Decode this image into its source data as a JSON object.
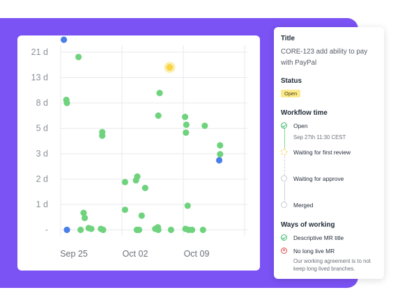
{
  "chart_data": {
    "type": "scatter",
    "y_ticks": [
      "21 d",
      "13 d",
      "8 d",
      "5 d",
      "3 d",
      "2 d",
      "1 d",
      "-"
    ],
    "x_ticks": [
      "Sep 25",
      "Oct 02",
      "Oct 09"
    ],
    "x_domain": [
      "Sep 25",
      "Oct 15"
    ],
    "y_scale": "ordinal tick bands",
    "grid": true,
    "colors": {
      "green": "#6fd37e",
      "blue": "#4a7fe8",
      "highlight": "#f8d544",
      "halo": "#fbeeb0"
    },
    "points": [
      {
        "x": 0.37,
        "y": 7.49,
        "c": "blue"
      },
      {
        "x": 0.65,
        "y": 5.12,
        "c": "green"
      },
      {
        "x": 0.72,
        "y": 5.0,
        "c": "green"
      },
      {
        "x": 0.72,
        "y": 0.0,
        "c": "blue"
      },
      {
        "x": 2.04,
        "y": 6.81,
        "c": "green"
      },
      {
        "x": 2.28,
        "y": 0.0,
        "c": "green"
      },
      {
        "x": 2.62,
        "y": 0.67,
        "c": "green"
      },
      {
        "x": 2.75,
        "y": 0.47,
        "c": "green"
      },
      {
        "x": 3.2,
        "y": 0.07,
        "c": "green"
      },
      {
        "x": 3.5,
        "y": 0.04,
        "c": "green"
      },
      {
        "x": 4.6,
        "y": 0.04,
        "c": "green"
      },
      {
        "x": 4.85,
        "y": 0.0,
        "c": "green"
      },
      {
        "x": 4.75,
        "y": 3.85,
        "c": "green"
      },
      {
        "x": 4.75,
        "y": 3.71,
        "c": "green"
      },
      {
        "x": 7.35,
        "y": 0.79,
        "c": "green"
      },
      {
        "x": 7.35,
        "y": 1.88,
        "c": "green"
      },
      {
        "x": 8.6,
        "y": 1.95,
        "c": "green"
      },
      {
        "x": 8.75,
        "y": 2.1,
        "c": "green"
      },
      {
        "x": 8.7,
        "y": 0.0,
        "c": "green"
      },
      {
        "x": 8.95,
        "y": 0.0,
        "c": "green"
      },
      {
        "x": 9.25,
        "y": 0.56,
        "c": "green"
      },
      {
        "x": 9.65,
        "y": 1.65,
        "c": "green"
      },
      {
        "x": 10.8,
        "y": 0.04,
        "c": "green"
      },
      {
        "x": 11.1,
        "y": 0.1,
        "c": "green"
      },
      {
        "x": 11.15,
        "y": 0.0,
        "c": "green"
      },
      {
        "x": 11.15,
        "y": 4.5,
        "c": "green"
      },
      {
        "x": 11.3,
        "y": 5.39,
        "c": "green"
      },
      {
        "x": 12.6,
        "y": 0.0,
        "c": "green"
      },
      {
        "x": 12.45,
        "y": 6.4,
        "c": "highlight"
      },
      {
        "x": 14.25,
        "y": 0.04,
        "c": "green"
      },
      {
        "x": 14.2,
        "y": 4.45,
        "c": "green"
      },
      {
        "x": 14.35,
        "y": 4.14,
        "c": "green"
      },
      {
        "x": 14.3,
        "y": 3.83,
        "c": "green"
      },
      {
        "x": 14.5,
        "y": 0.95,
        "c": "green"
      },
      {
        "x": 14.6,
        "y": 0.0,
        "c": "green"
      },
      {
        "x": 15.0,
        "y": 0.0,
        "c": "green"
      },
      {
        "x": 16.25,
        "y": 0.0,
        "c": "green"
      },
      {
        "x": 16.45,
        "y": 4.1,
        "c": "green"
      },
      {
        "x": 18.2,
        "y": 3.33,
        "c": "green"
      },
      {
        "x": 18.2,
        "y": 2.98,
        "c": "green"
      },
      {
        "x": 18.1,
        "y": 2.74,
        "c": "blue"
      }
    ]
  },
  "panel": {
    "title_heading": "Title",
    "ticket_title": "CORE-123 add ability to pay with PayPal",
    "status_heading": "Status",
    "status_badge": "Open",
    "workflow_heading": "Workflow time",
    "workflow_steps": [
      {
        "label": "Open",
        "sub": "Sep 27th 11:30 CEST",
        "state": "done"
      },
      {
        "label": "Waiting for first review",
        "state": "pending"
      },
      {
        "label": "Waiting for approve",
        "state": "future"
      },
      {
        "label": "Merged",
        "state": "future"
      }
    ],
    "ways_heading": "Ways of working",
    "ways": [
      {
        "label": "Descriptive MR title",
        "state": "ok",
        "icon": "check-circle-icon"
      },
      {
        "label": "No long live MR",
        "state": "bad",
        "icon": "x-circle-icon",
        "desc": "Our working agreement is to not keep long lived branches."
      }
    ]
  }
}
